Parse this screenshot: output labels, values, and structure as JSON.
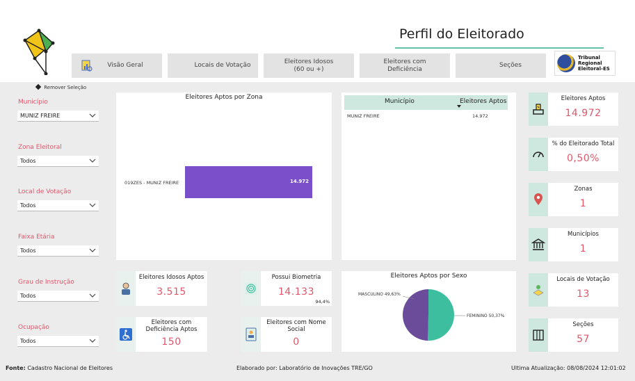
{
  "header": {
    "title": "Perfil do Eleitorado",
    "tabs": [
      {
        "label": "Visão Geral"
      },
      {
        "label": "Locais de Votação"
      },
      {
        "label": "Eleitores Idosos",
        "sub": "(60 ou +)"
      },
      {
        "label": "Eleitores com",
        "sub": "Deficiência"
      },
      {
        "label": "Seções"
      }
    ],
    "tre_logo": {
      "line1": "Tribunal",
      "line2": "Regional",
      "line3": "Eleitoral-ES"
    }
  },
  "sidebar": {
    "remove_selection": "Remover Seleção",
    "filters": [
      {
        "label": "Município",
        "value": "MUNIZ FREIRE"
      },
      {
        "label": "Zona Eleitoral",
        "value": "Todos"
      },
      {
        "label": "Local de Votação",
        "value": "Todos"
      },
      {
        "label": "Faixa Etária",
        "value": "Todos"
      },
      {
        "label": "Grau de Instrução",
        "value": "Todos"
      },
      {
        "label": "Ocupação",
        "value": "Todos"
      }
    ]
  },
  "zona_panel": {
    "title": "Eleitores Aptos por Zona",
    "bar_label": "019ZES - MUNIZ FREIRE",
    "bar_value": "14.972"
  },
  "table_panel": {
    "col1": "Município",
    "col2": "Eleitores Aptos",
    "rows": [
      {
        "municipio": "MUNIZ FREIRE",
        "aptos": "14.972"
      }
    ]
  },
  "kpis_right": [
    {
      "label": "Eleitores Aptos",
      "value": "14.972",
      "icon": "vote-hand-icon"
    },
    {
      "label": "% do Eleitorado Total",
      "value": "0,50%",
      "icon": "gauge-icon"
    },
    {
      "label": "Zonas",
      "value": "1",
      "icon": "location-pin-icon"
    },
    {
      "label": "Municípios",
      "value": "1",
      "icon": "building-icon"
    },
    {
      "label": "Locais de Votação",
      "value": "13",
      "icon": "voting-place-icon"
    },
    {
      "label": "Seções",
      "value": "57",
      "icon": "voting-booth-icon"
    }
  ],
  "kpis_mid": {
    "idosos": {
      "label": "Eleitores Idosos Aptos",
      "value": "3.515"
    },
    "biometria": {
      "label": "Possui Biometria",
      "value": "14.133",
      "pct": "94,4%"
    },
    "deficiencia": {
      "label1": "Eleitores com",
      "label2": "Deficiência Aptos",
      "value": "150"
    },
    "nome_social": {
      "label1": "Eleitores com Nome",
      "label2": "Social",
      "value": "0"
    }
  },
  "pie_panel": {
    "title": "Eleitores Aptos por Sexo",
    "masculino_label": "MASCULINO 49,63%",
    "feminino_label": "FEMININO 50,37%"
  },
  "chart_data": [
    {
      "type": "bar",
      "title": "Eleitores Aptos por Zona",
      "categories": [
        "019ZES - MUNIZ FREIRE"
      ],
      "values": [
        14972
      ]
    },
    {
      "type": "pie",
      "title": "Eleitores Aptos por Sexo",
      "categories": [
        "MASCULINO",
        "FEMININO"
      ],
      "values": [
        49.63,
        50.37
      ],
      "colors": [
        "#6b4c9a",
        "#3dbf9f"
      ]
    }
  ],
  "footer": {
    "fonte_label": "Fonte:",
    "fonte_value": "Cadastro Nacional de Eleitores",
    "elaborado": "Elaborado por: Laboratório de Inovações TRE/GO",
    "atualizacao": "Ultima Atualização: 08/08/2024 12:01:02"
  },
  "colors": {
    "accent": "#e0566a",
    "teal": "#5fc3a8",
    "bar": "#7b4fc9"
  }
}
